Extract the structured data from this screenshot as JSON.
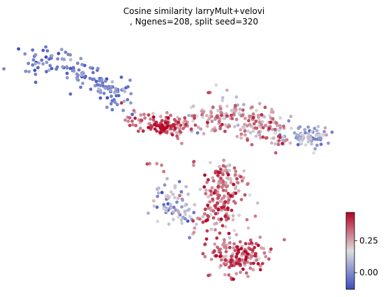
{
  "chart_data": {
    "type": "scatter",
    "title_line1": "Cosine similarity larryMult+velovi",
    "title_line2": ", Ngenes=208, split seed=320",
    "xlabel": "",
    "ylabel": "",
    "axes_visible": false,
    "grid": false,
    "colormap": "coolwarm",
    "colorbar": {
      "range": [
        -0.13,
        0.47
      ],
      "ticks": [
        0.25,
        0.0
      ],
      "tick_labels": [
        "0.25",
        "0.00"
      ],
      "placement": "bottom-right"
    },
    "x_range": [
      0,
      100
    ],
    "y_range": [
      0,
      100
    ],
    "regions": [
      {
        "name": "upper-left arm",
        "cx": [
          2,
          10,
          18,
          26,
          32
        ],
        "cy": [
          90,
          93,
          87,
          81,
          74
        ],
        "spread": [
          4.5,
          4.5,
          4.5,
          4,
          3.5
        ],
        "n": 150,
        "value_mean": -0.02,
        "value_sd": 0.06
      },
      {
        "name": "central bridge",
        "cx": [
          35,
          42,
          48,
          53
        ],
        "cy": [
          67,
          66,
          64,
          65
        ],
        "spread": [
          3.5,
          3.5,
          3.5,
          3.5
        ],
        "n": 110,
        "value_mean": 0.33,
        "value_sd": 0.07
      },
      {
        "name": "center hotspot",
        "cx": [
          42,
          46
        ],
        "cy": [
          64,
          63
        ],
        "spread": [
          2,
          2
        ],
        "n": 20,
        "value_mean": 0.44,
        "value_sd": 0.03
      },
      {
        "name": "upper-right hub",
        "cx": [
          58,
          66,
          73,
          80
        ],
        "cy": [
          67,
          70,
          66,
          62
        ],
        "spread": [
          4.5,
          5,
          5,
          4.5
        ],
        "n": 210,
        "value_mean": 0.22,
        "value_sd": 0.1
      },
      {
        "name": "right tip",
        "cx": [
          84,
          90,
          94
        ],
        "cy": [
          60,
          60,
          61
        ],
        "spread": [
          3.5,
          3.5,
          3
        ],
        "n": 80,
        "value_mean": 0.06,
        "value_sd": 0.08
      },
      {
        "name": "left lower branch",
        "cx": [
          45,
          48,
          51
        ],
        "cy": [
          38,
          30,
          25
        ],
        "spread": [
          3.5,
          4,
          4
        ],
        "n": 75,
        "value_mean": 0.08,
        "value_sd": 0.1
      },
      {
        "name": "middle stem",
        "cx": [
          62,
          65,
          63,
          60
        ],
        "cy": [
          46,
          39,
          31,
          23
        ],
        "spread": [
          4,
          4.5,
          5,
          5
        ],
        "n": 190,
        "value_mean": 0.3,
        "value_sd": 0.09
      },
      {
        "name": "bottom blob",
        "cx": [
          61,
          67,
          73,
          66
        ],
        "cy": [
          14,
          9,
          11,
          5
        ],
        "spread": [
          5,
          5,
          4.5,
          4
        ],
        "n": 170,
        "value_mean": 0.33,
        "value_sd": 0.08
      },
      {
        "name": "stray points",
        "cx": [
          37,
          43,
          57,
          47
        ],
        "cy": [
          52,
          47,
          48,
          58
        ],
        "spread": [
          2,
          2,
          2,
          2
        ],
        "n": 8,
        "value_mean": 0.3,
        "value_sd": 0.05
      }
    ],
    "seed": 320
  },
  "colors": {
    "cmap_low": "#3b4cc0",
    "cmap_mid": "#dddddd",
    "cmap_high": "#b40426"
  }
}
